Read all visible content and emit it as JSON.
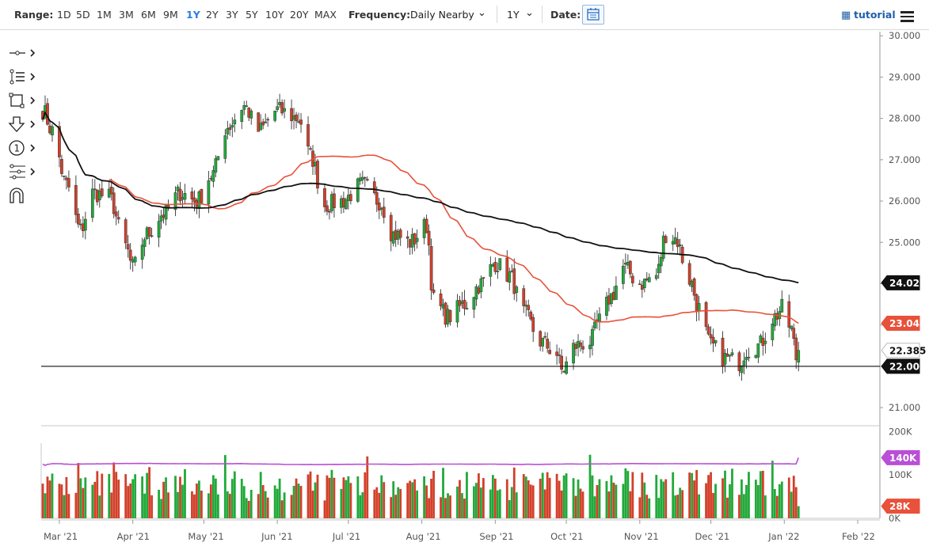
{
  "toolbar": {
    "range_label": "Range:",
    "ranges": [
      "1D",
      "5D",
      "1M",
      "3M",
      "6M",
      "9M",
      "1Y",
      "2Y",
      "3Y",
      "5Y",
      "10Y",
      "20Y",
      "MAX"
    ],
    "active_range": "1Y",
    "frequency_label": "Frequency:",
    "frequency_value": "Daily Nearby",
    "period_value": "1Y",
    "date_label": "Date:",
    "tutorial_label": "tutorial"
  },
  "sidebar_tools": [
    "crosshair-tool-icon",
    "trend-tool-icon",
    "shape-tool-icon",
    "arrow-tool-icon",
    "annotation-tool-icon",
    "fibonacci-tool-icon",
    "magnet-tool-icon"
  ],
  "colors": {
    "up": "#21a93a",
    "down": "#d2402a",
    "ma50": "#e8513a",
    "ma200": "#111111",
    "volume_ma": "#b94fd6",
    "accent": "#2a7de1"
  },
  "chart_data": [
    {
      "type": "candlestick",
      "title": "",
      "x_start": "2021-02-22",
      "x_ticks": [
        "Mar '21",
        "Apr '21",
        "May '21",
        "Jun '21",
        "Jul '21",
        "Aug '21",
        "Sep '21",
        "Oct '21",
        "Nov '21",
        "Dec '21",
        "Jan '22",
        "Feb '22"
      ],
      "y_ticks": [
        "21.000",
        "22.000",
        "23.000",
        "24.000",
        "25.000",
        "26.000",
        "27.000",
        "28.000",
        "29.000",
        "30.000"
      ],
      "ylim": [
        20.6,
        30.1
      ],
      "horizontal_line": 22.0,
      "price_labels": [
        {
          "label": "24.022",
          "value": 24.022,
          "role": "ma200"
        },
        {
          "label": "23.043",
          "value": 23.043,
          "role": "ma50"
        },
        {
          "label": "22.385",
          "value": 22.385,
          "role": "last"
        },
        {
          "label": "22.000",
          "value": 22.0,
          "role": "line"
        }
      ],
      "close_anchors": [
        [
          "2021-02-22",
          28.2
        ],
        [
          "2021-02-26",
          27.7
        ],
        [
          "2021-03-04",
          26.4
        ],
        [
          "2021-03-10",
          25.3
        ],
        [
          "2021-03-15",
          26.2
        ],
        [
          "2021-03-22",
          26.1
        ],
        [
          "2021-03-29",
          24.9
        ],
        [
          "2021-04-01",
          24.4
        ],
        [
          "2021-04-07",
          25.2
        ],
        [
          "2021-04-14",
          25.7
        ],
        [
          "2021-04-21",
          26.2
        ],
        [
          "2021-04-28",
          26.0
        ],
        [
          "2021-05-04",
          26.6
        ],
        [
          "2021-05-11",
          27.8
        ],
        [
          "2021-05-18",
          28.3
        ],
        [
          "2021-05-24",
          27.7
        ],
        [
          "2021-06-01",
          28.2
        ],
        [
          "2021-06-10",
          28.0
        ],
        [
          "2021-06-15",
          27.1
        ],
        [
          "2021-06-21",
          25.9
        ],
        [
          "2021-06-28",
          26.0
        ],
        [
          "2021-07-07",
          26.4
        ],
        [
          "2021-07-14",
          26.0
        ],
        [
          "2021-07-20",
          25.2
        ],
        [
          "2021-07-27",
          25.0
        ],
        [
          "2021-08-03",
          25.4
        ],
        [
          "2021-08-06",
          23.6
        ],
        [
          "2021-08-12",
          23.2
        ],
        [
          "2021-08-19",
          23.5
        ],
        [
          "2021-08-26",
          24.0
        ],
        [
          "2021-09-01",
          24.5
        ],
        [
          "2021-09-07",
          24.2
        ],
        [
          "2021-09-13",
          23.3
        ],
        [
          "2021-09-20",
          22.6
        ],
        [
          "2021-09-27",
          22.3
        ],
        [
          "2021-09-29",
          21.9
        ],
        [
          "2021-10-05",
          22.5
        ],
        [
          "2021-10-11",
          22.6
        ],
        [
          "2021-10-15",
          23.1
        ],
        [
          "2021-10-20",
          23.7
        ],
        [
          "2021-10-25",
          24.4
        ],
        [
          "2021-11-01",
          24.0
        ],
        [
          "2021-11-08",
          24.2
        ],
        [
          "2021-11-12",
          25.2
        ],
        [
          "2021-11-16",
          25.1
        ],
        [
          "2021-11-22",
          24.1
        ],
        [
          "2021-11-26",
          23.4
        ],
        [
          "2021-12-01",
          22.5
        ],
        [
          "2021-12-07",
          22.2
        ],
        [
          "2021-12-13",
          22.1
        ],
        [
          "2021-12-16",
          22.4
        ],
        [
          "2021-12-21",
          22.5
        ],
        [
          "2021-12-28",
          23.2
        ],
        [
          "2021-12-31",
          23.4
        ],
        [
          "2022-01-04",
          22.9
        ],
        [
          "2022-01-06",
          22.2
        ],
        [
          "2022-01-07",
          22.385
        ]
      ],
      "series": [
        {
          "name": "",
          "kind": "candles"
        },
        {
          "name": "",
          "kind": "line",
          "role": "ma50",
          "end_value": 23.043
        },
        {
          "name": "",
          "kind": "line",
          "role": "ma200",
          "end_value": 24.022
        }
      ],
      "grid": false
    },
    {
      "type": "bar",
      "title": "",
      "y_ticks": [
        "0K",
        "100K",
        "200K"
      ],
      "ylim": [
        0,
        210
      ],
      "units": "thousand contracts",
      "price_labels": [
        {
          "label": "140K",
          "value": 140,
          "role": "volume_ma"
        },
        {
          "label": "28K",
          "value": 28,
          "role": "last_volume"
        }
      ]
    }
  ]
}
